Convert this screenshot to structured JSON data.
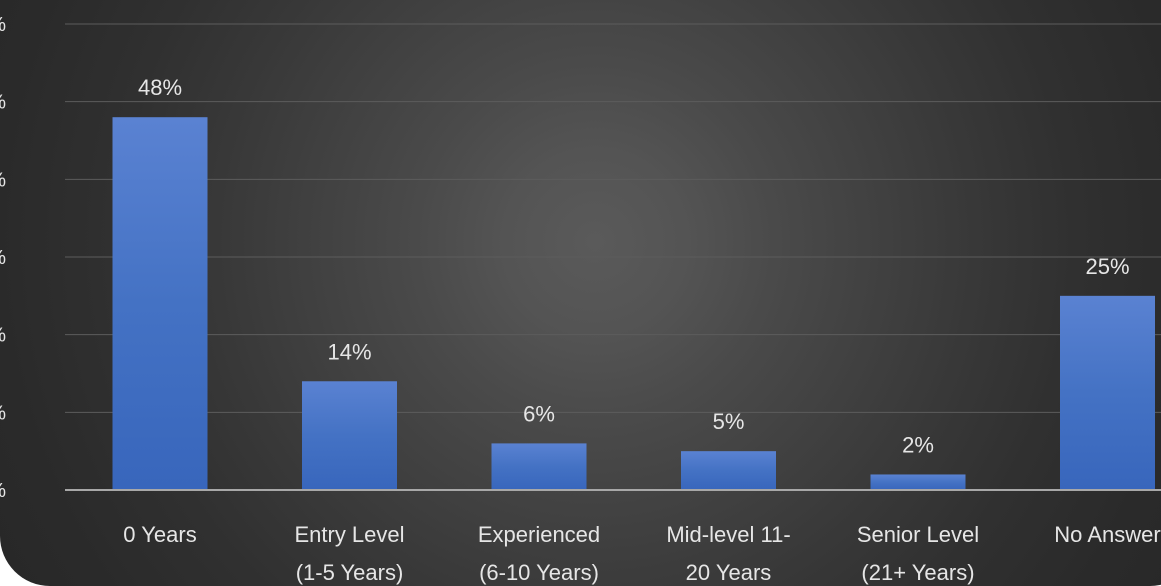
{
  "chart_data": {
    "type": "bar",
    "title": "",
    "xlabel": "",
    "ylabel": "",
    "categories": [
      [
        "0 Years"
      ],
      [
        "Entry Level",
        "(1-5 Years)"
      ],
      [
        "Experienced",
        "(6-10 Years)"
      ],
      [
        "Mid-level 11-",
        "20 Years"
      ],
      [
        "Senior Level",
        "(21+ Years)"
      ],
      [
        "No Answer"
      ]
    ],
    "values": [
      48,
      14,
      6,
      5,
      2,
      25
    ],
    "value_labels": [
      "48%",
      "14%",
      "6%",
      "5%",
      "2%",
      "25%"
    ],
    "y_tick_labels": [
      "%",
      "%",
      "%",
      "%",
      "%",
      "%",
      "%"
    ],
    "ylim": [
      0,
      60
    ],
    "grid": true,
    "bar_color": "#4472c4",
    "background": "#3a3a3a"
  }
}
